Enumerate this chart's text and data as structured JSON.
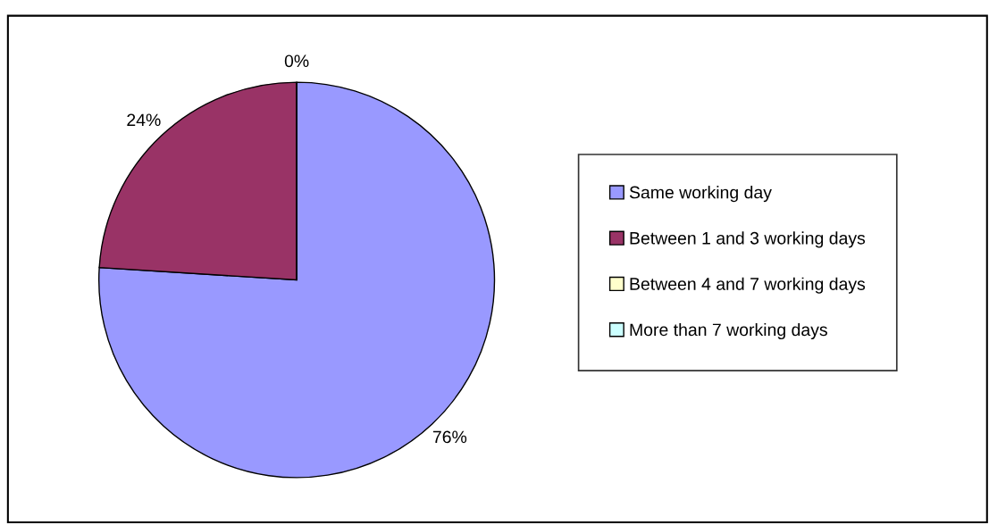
{
  "chart_data": {
    "type": "pie",
    "categories": [
      "Same working day",
      "Between 1 and 3 working days",
      "Between 4 and 7 working days",
      "More than 7 working days"
    ],
    "values": [
      76,
      24,
      0,
      0
    ],
    "colors": [
      "#9999ff",
      "#993366",
      "#ffffcc",
      "#ccffff"
    ],
    "value_labels": [
      "76%",
      "24%",
      "0%",
      null
    ],
    "legend": "right"
  }
}
